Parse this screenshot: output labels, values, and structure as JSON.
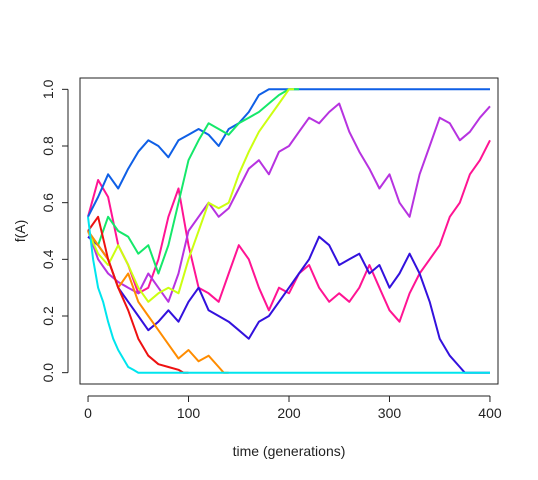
{
  "chart_data": {
    "type": "line",
    "title": "",
    "xlabel": "time (generations)",
    "ylabel": "f(A)",
    "xlim": [
      -8,
      408
    ],
    "ylim": [
      -0.04,
      1.04
    ],
    "x_ticks": [
      0,
      100,
      200,
      300,
      400
    ],
    "x_tick_labels": [
      "0",
      "100",
      "200",
      "300",
      "400"
    ],
    "y_ticks": [
      0.0,
      0.2,
      0.4,
      0.6,
      0.8,
      1.0
    ],
    "y_tick_labels": [
      "0.0",
      "0.2",
      "0.4",
      "0.6",
      "0.8",
      "1.0"
    ],
    "grid": false,
    "series": [
      {
        "color": "#ff1493",
        "x": [
          0,
          10,
          20,
          30,
          40,
          50,
          60,
          70,
          80,
          90,
          100,
          110,
          120,
          130,
          140,
          150,
          160,
          170,
          180,
          190,
          200,
          210,
          220,
          230,
          240,
          250,
          260,
          270,
          280,
          290,
          300,
          310,
          320,
          330,
          340,
          350,
          360,
          370,
          380,
          390,
          400
        ],
        "y": [
          0.55,
          0.68,
          0.62,
          0.45,
          0.38,
          0.28,
          0.3,
          0.4,
          0.55,
          0.65,
          0.45,
          0.3,
          0.28,
          0.25,
          0.35,
          0.45,
          0.4,
          0.3,
          0.22,
          0.3,
          0.28,
          0.35,
          0.38,
          0.3,
          0.25,
          0.28,
          0.25,
          0.3,
          0.38,
          0.3,
          0.22,
          0.18,
          0.28,
          0.35,
          0.4,
          0.45,
          0.55,
          0.6,
          0.7,
          0.75,
          0.82
        ]
      },
      {
        "color": "#b733e0",
        "x": [
          0,
          10,
          20,
          30,
          40,
          50,
          60,
          70,
          80,
          90,
          100,
          110,
          120,
          130,
          140,
          150,
          160,
          170,
          180,
          190,
          200,
          210,
          220,
          230,
          240,
          250,
          260,
          270,
          280,
          290,
          300,
          310,
          320,
          330,
          340,
          350,
          360,
          370,
          380,
          390,
          400
        ],
        "y": [
          0.5,
          0.4,
          0.35,
          0.32,
          0.3,
          0.28,
          0.35,
          0.3,
          0.25,
          0.35,
          0.5,
          0.55,
          0.6,
          0.55,
          0.58,
          0.65,
          0.72,
          0.75,
          0.7,
          0.78,
          0.8,
          0.85,
          0.9,
          0.88,
          0.92,
          0.95,
          0.85,
          0.78,
          0.72,
          0.65,
          0.7,
          0.6,
          0.55,
          0.7,
          0.8,
          0.9,
          0.88,
          0.82,
          0.85,
          0.9,
          0.94
        ]
      },
      {
        "color": "#3311dd",
        "x": [
          0,
          10,
          20,
          30,
          40,
          50,
          60,
          70,
          80,
          90,
          100,
          110,
          120,
          130,
          140,
          150,
          160,
          170,
          180,
          190,
          200,
          210,
          220,
          230,
          240,
          250,
          260,
          270,
          280,
          290,
          300,
          310,
          320,
          330,
          340,
          350,
          360,
          370,
          375,
          380,
          400
        ],
        "y": [
          0.48,
          0.45,
          0.4,
          0.3,
          0.25,
          0.2,
          0.15,
          0.18,
          0.22,
          0.18,
          0.25,
          0.3,
          0.22,
          0.2,
          0.18,
          0.15,
          0.12,
          0.18,
          0.2,
          0.25,
          0.3,
          0.35,
          0.4,
          0.48,
          0.45,
          0.38,
          0.4,
          0.42,
          0.35,
          0.38,
          0.3,
          0.35,
          0.42,
          0.35,
          0.25,
          0.12,
          0.06,
          0.02,
          0.0,
          0.0,
          0.0
        ]
      },
      {
        "color": "#0f5fe6",
        "x": [
          0,
          10,
          20,
          30,
          40,
          50,
          60,
          70,
          80,
          90,
          100,
          110,
          120,
          130,
          140,
          150,
          160,
          170,
          180,
          190,
          200,
          210,
          220,
          240,
          260,
          280,
          300,
          320,
          340,
          360,
          380,
          400
        ],
        "y": [
          0.55,
          0.62,
          0.7,
          0.65,
          0.72,
          0.78,
          0.82,
          0.8,
          0.76,
          0.82,
          0.84,
          0.86,
          0.84,
          0.8,
          0.86,
          0.88,
          0.92,
          0.98,
          1.0,
          1.0,
          1.0,
          1.0,
          1.0,
          1.0,
          1.0,
          1.0,
          1.0,
          1.0,
          1.0,
          1.0,
          1.0,
          1.0
        ]
      },
      {
        "color": "#15e86a",
        "x": [
          0,
          10,
          20,
          30,
          40,
          50,
          60,
          70,
          80,
          90,
          100,
          110,
          120,
          130,
          140,
          150,
          160,
          170,
          180,
          190,
          200,
          210
        ],
        "y": [
          0.5,
          0.45,
          0.55,
          0.5,
          0.48,
          0.42,
          0.45,
          0.35,
          0.45,
          0.6,
          0.75,
          0.82,
          0.88,
          0.86,
          0.84,
          0.88,
          0.9,
          0.92,
          0.95,
          0.98,
          1.0,
          1.0
        ]
      },
      {
        "color": "#ccff11",
        "x": [
          0,
          10,
          20,
          30,
          40,
          50,
          60,
          70,
          80,
          90,
          100,
          110,
          120,
          130,
          140,
          150,
          160,
          170,
          180,
          190,
          200,
          205
        ],
        "y": [
          0.5,
          0.42,
          0.38,
          0.45,
          0.38,
          0.3,
          0.25,
          0.28,
          0.3,
          0.28,
          0.4,
          0.5,
          0.6,
          0.58,
          0.6,
          0.7,
          0.78,
          0.85,
          0.9,
          0.95,
          1.0,
          1.0
        ]
      },
      {
        "color": "#ff8c00",
        "x": [
          0,
          10,
          20,
          30,
          40,
          50,
          60,
          70,
          80,
          90,
          100,
          110,
          120,
          130,
          135,
          140
        ],
        "y": [
          0.5,
          0.45,
          0.4,
          0.3,
          0.35,
          0.25,
          0.2,
          0.15,
          0.1,
          0.05,
          0.08,
          0.04,
          0.06,
          0.02,
          0.0,
          0.0
        ]
      },
      {
        "color": "#ee1111",
        "x": [
          0,
          10,
          20,
          30,
          40,
          50,
          60,
          70,
          80,
          90,
          95,
          100
        ],
        "y": [
          0.5,
          0.55,
          0.4,
          0.3,
          0.22,
          0.12,
          0.06,
          0.03,
          0.02,
          0.01,
          0.0,
          0.0
        ]
      },
      {
        "color": "#00e5ee",
        "x": [
          0,
          5,
          10,
          15,
          20,
          25,
          30,
          35,
          40,
          45,
          50,
          60,
          80,
          100,
          150,
          200,
          250,
          300,
          350,
          400
        ],
        "y": [
          0.55,
          0.4,
          0.3,
          0.25,
          0.18,
          0.12,
          0.08,
          0.05,
          0.02,
          0.01,
          0.0,
          0.0,
          0.0,
          0.0,
          0.0,
          0.0,
          0.0,
          0.0,
          0.0,
          0.0
        ]
      }
    ]
  }
}
